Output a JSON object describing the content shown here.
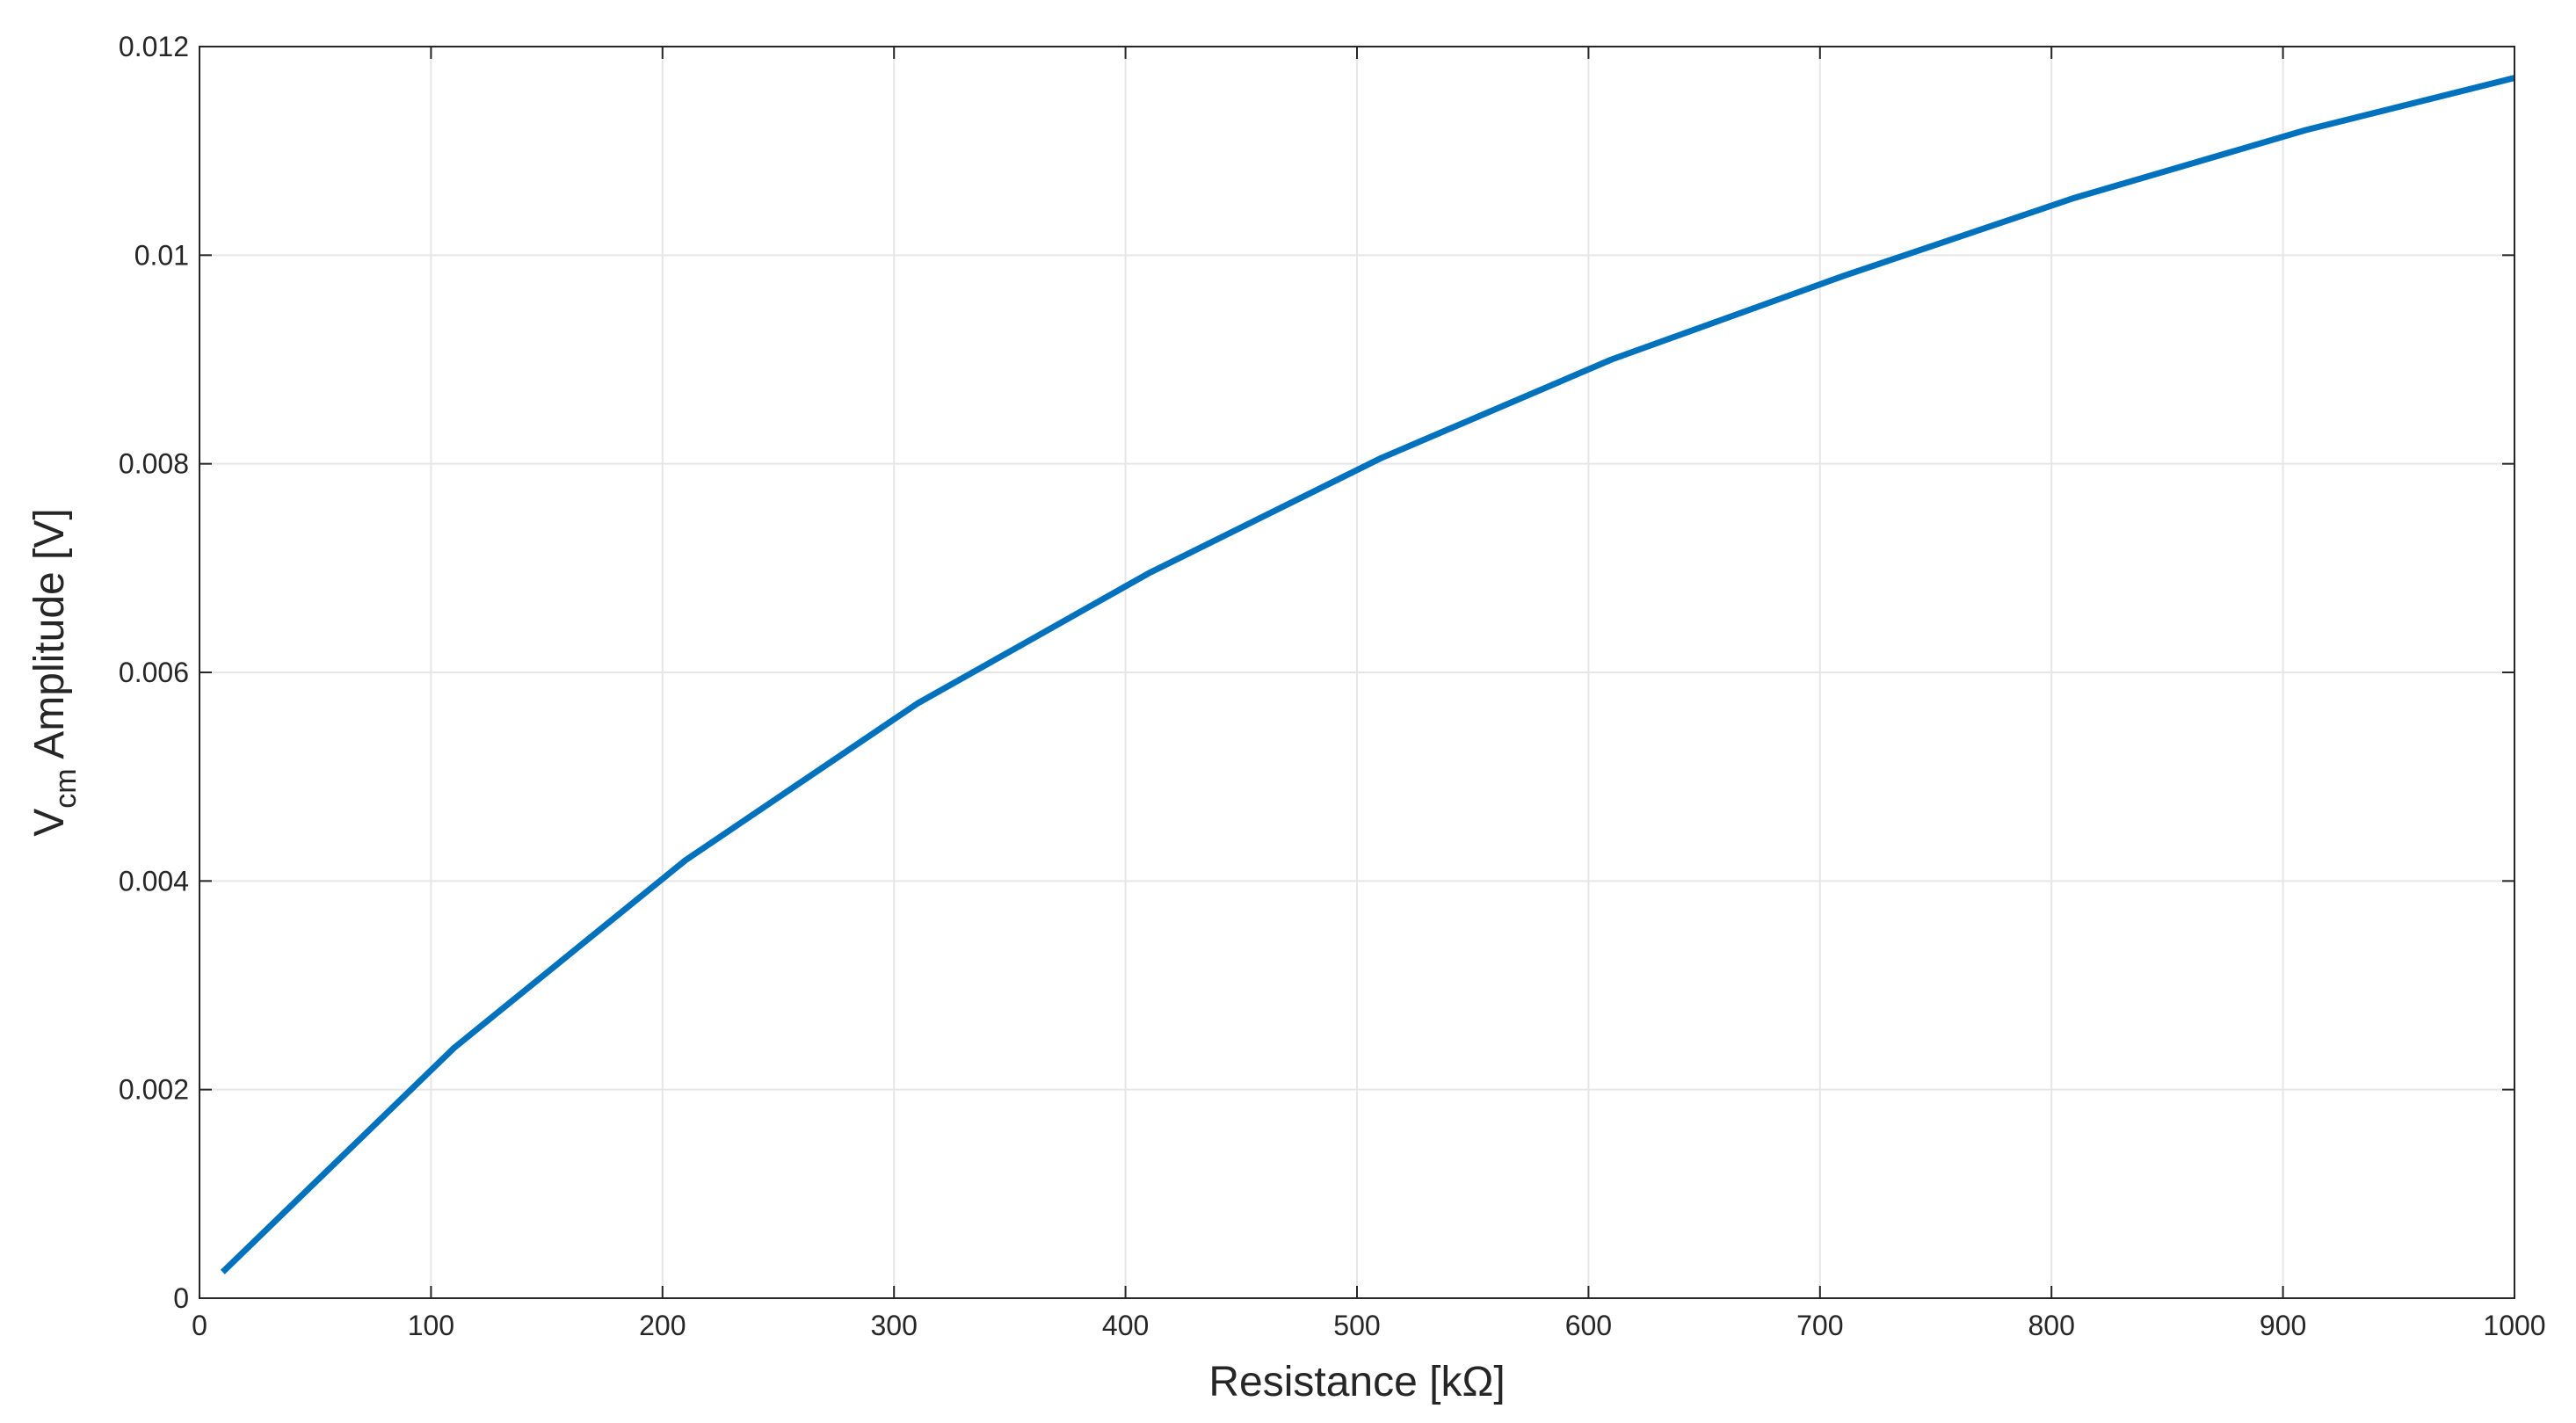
{
  "chart_data": {
    "type": "line",
    "title": "",
    "xlabel": "Resistance [kΩ]",
    "ylabel": {
      "main": "V",
      "subscript": "cm",
      "rest": " Amplitude [V]"
    },
    "xlim": [
      0,
      1000
    ],
    "ylim": [
      0,
      0.012
    ],
    "xticks": [
      0,
      100,
      200,
      300,
      400,
      500,
      600,
      700,
      800,
      900,
      1000
    ],
    "yticks": [
      0,
      0.002,
      0.004,
      0.006,
      0.008,
      0.01,
      0.012
    ],
    "xtick_labels": [
      "0",
      "100",
      "200",
      "300",
      "400",
      "500",
      "600",
      "700",
      "800",
      "900",
      "1000"
    ],
    "ytick_labels": [
      "0",
      "0.002",
      "0.004",
      "0.006",
      "0.008",
      "0.01",
      "0.012"
    ],
    "grid": true,
    "box": true,
    "series": [
      {
        "color": "#0072BD",
        "x": [
          10,
          110,
          210,
          310,
          410,
          510,
          610,
          710,
          810,
          910,
          1000
        ],
        "y": [
          0.00025,
          0.0024,
          0.0042,
          0.0057,
          0.00695,
          0.00805,
          0.009,
          0.0098,
          0.01055,
          0.0112,
          0.0117
        ]
      }
    ]
  }
}
